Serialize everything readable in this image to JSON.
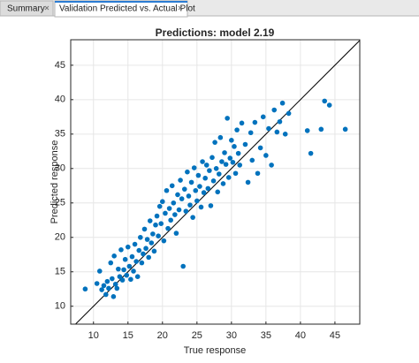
{
  "tabs": [
    {
      "label": "Summary"
    },
    {
      "label": "Validation Predicted vs. Actual Plot"
    }
  ],
  "chart_data": {
    "type": "scatter",
    "title": "Predictions: model 2.19",
    "x_label": "True response",
    "y_label": "Predicted response",
    "color": "#0072bd",
    "grid": true,
    "xlim": [
      6.7,
      48.6
    ],
    "ylim": [
      7.4,
      48.7
    ],
    "xticks": [
      10,
      15,
      20,
      25,
      30,
      35,
      40,
      45
    ],
    "yticks": [
      10,
      15,
      20,
      25,
      30,
      35,
      40,
      45
    ],
    "x": [
      8.8,
      10.5,
      10.9,
      11.2,
      11.5,
      11.8,
      12.0,
      12.2,
      12.5,
      12.7,
      12.9,
      13.0,
      13.2,
      13.4,
      13.6,
      13.8,
      14.0,
      14.2,
      14.4,
      14.6,
      14.8,
      15.0,
      15.2,
      15.4,
      15.6,
      15.8,
      16.0,
      16.2,
      16.4,
      16.6,
      16.8,
      17.0,
      17.2,
      17.4,
      17.6,
      17.8,
      18.0,
      18.2,
      18.4,
      18.6,
      18.8,
      19.0,
      19.2,
      19.4,
      19.6,
      19.8,
      20.0,
      20.2,
      20.4,
      20.6,
      20.8,
      21.0,
      21.2,
      21.4,
      21.6,
      21.8,
      22.0,
      22.2,
      22.4,
      22.6,
      22.8,
      23.0,
      23.2,
      23.4,
      23.6,
      23.8,
      24.0,
      24.2,
      24.4,
      24.6,
      24.8,
      25.0,
      25.2,
      25.4,
      25.6,
      25.8,
      26.0,
      26.2,
      26.4,
      26.6,
      26.8,
      27.0,
      27.2,
      27.4,
      27.6,
      27.8,
      28.0,
      28.2,
      28.4,
      28.6,
      28.8,
      29.0,
      29.2,
      29.4,
      29.6,
      29.8,
      30.0,
      30.2,
      30.4,
      30.6,
      30.8,
      31.0,
      31.2,
      31.5,
      32.0,
      32.4,
      32.8,
      33.0,
      33.4,
      33.8,
      34.2,
      34.6,
      35.0,
      35.4,
      35.8,
      36.2,
      36.6,
      37.0,
      37.4,
      37.8,
      38.3,
      41.0,
      41.5,
      43.0,
      43.5,
      44.2,
      46.5
    ],
    "values": [
      12.5,
      13.3,
      15.1,
      12.4,
      13.0,
      11.7,
      13.6,
      12.6,
      16.3,
      14.0,
      11.4,
      17.3,
      13.2,
      12.6,
      15.4,
      14.3,
      18.2,
      13.8,
      15.3,
      16.8,
      14.5,
      18.6,
      15.8,
      13.9,
      17.2,
      15.1,
      19.0,
      16.5,
      14.3,
      18.1,
      20.0,
      16.3,
      17.6,
      21.2,
      18.4,
      19.7,
      17.1,
      22.4,
      19.2,
      20.5,
      18.0,
      21.8,
      23.1,
      20.2,
      24.5,
      22.0,
      25.2,
      19.5,
      23.5,
      26.8,
      21.3,
      24.2,
      22.5,
      27.5,
      25.0,
      23.3,
      20.6,
      26.2,
      24.0,
      28.3,
      25.6,
      15.8,
      27.0,
      23.8,
      29.5,
      26.0,
      24.7,
      28.0,
      22.9,
      30.1,
      26.8,
      25.3,
      29.0,
      27.4,
      24.4,
      31.0,
      26.5,
      28.6,
      30.5,
      27.1,
      29.7,
      24.6,
      31.6,
      28.2,
      33.8,
      30.0,
      26.6,
      29.2,
      34.5,
      31.0,
      27.8,
      32.3,
      30.6,
      37.3,
      28.7,
      31.5,
      34.1,
      30.9,
      33.2,
      29.3,
      35.6,
      32.2,
      30.5,
      36.6,
      33.5,
      28.0,
      35.2,
      31.2,
      36.7,
      29.3,
      33.0,
      37.5,
      31.9,
      35.8,
      30.5,
      38.5,
      35.3,
      36.8,
      39.5,
      35.0,
      38.0,
      35.5,
      32.2,
      35.7,
      39.8,
      39.2,
      35.7
    ]
  }
}
